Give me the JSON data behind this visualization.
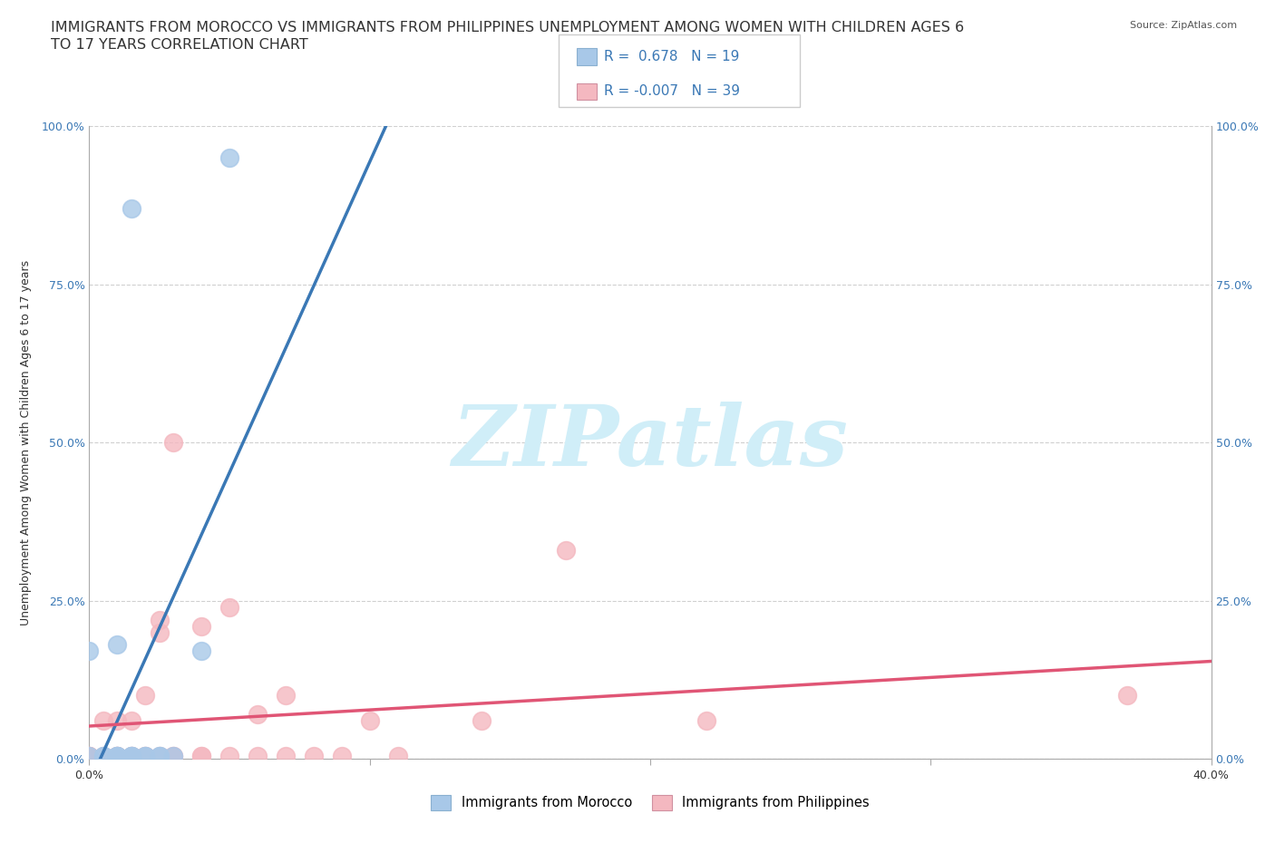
{
  "title_line1": "IMMIGRANTS FROM MOROCCO VS IMMIGRANTS FROM PHILIPPINES UNEMPLOYMENT AMONG WOMEN WITH CHILDREN AGES 6",
  "title_line2": "TO 17 YEARS CORRELATION CHART",
  "source": "Source: ZipAtlas.com",
  "ylabel": "Unemployment Among Women with Children Ages 6 to 17 years",
  "xlim": [
    0.0,
    0.4
  ],
  "ylim": [
    0.0,
    1.0
  ],
  "xticks": [
    0.0,
    0.1,
    0.2,
    0.3,
    0.4
  ],
  "xticklabels": [
    "0.0%",
    "",
    "",
    "",
    "40.0%"
  ],
  "yticks": [
    0.0,
    0.25,
    0.5,
    0.75,
    1.0
  ],
  "yticklabels": [
    "0.0%",
    "25.0%",
    "50.0%",
    "75.0%",
    "100.0%"
  ],
  "morocco_color": "#a8c8e8",
  "philippines_color": "#f4b8c0",
  "morocco_line_color": "#3a78b5",
  "philippines_line_color": "#e05575",
  "watermark_text": "ZIPatlas",
  "watermark_color": "#d0eef8",
  "background_color": "#ffffff",
  "grid_color": "#d0d0d0",
  "morocco_R": 0.678,
  "morocco_N": 19,
  "philippines_R": -0.007,
  "philippines_N": 39,
  "morocco_x": [
    0.0,
    0.0,
    0.005,
    0.005,
    0.01,
    0.01,
    0.01,
    0.01,
    0.015,
    0.015,
    0.015,
    0.015,
    0.02,
    0.02,
    0.025,
    0.025,
    0.03,
    0.04,
    0.05
  ],
  "morocco_y": [
    0.005,
    0.17,
    0.005,
    0.005,
    0.005,
    0.005,
    0.005,
    0.18,
    0.005,
    0.005,
    0.005,
    0.87,
    0.005,
    0.005,
    0.005,
    0.005,
    0.005,
    0.17,
    0.95
  ],
  "philippines_x": [
    0.0,
    0.0,
    0.0,
    0.0,
    0.005,
    0.005,
    0.01,
    0.01,
    0.01,
    0.01,
    0.015,
    0.015,
    0.015,
    0.02,
    0.02,
    0.02,
    0.025,
    0.025,
    0.025,
    0.03,
    0.03,
    0.03,
    0.04,
    0.04,
    0.04,
    0.05,
    0.05,
    0.06,
    0.06,
    0.07,
    0.07,
    0.08,
    0.09,
    0.1,
    0.11,
    0.14,
    0.17,
    0.22,
    0.37
  ],
  "philippines_y": [
    0.005,
    0.005,
    0.005,
    0.005,
    0.005,
    0.06,
    0.005,
    0.005,
    0.005,
    0.06,
    0.005,
    0.005,
    0.06,
    0.005,
    0.005,
    0.1,
    0.005,
    0.2,
    0.22,
    0.005,
    0.005,
    0.5,
    0.005,
    0.005,
    0.21,
    0.005,
    0.24,
    0.005,
    0.07,
    0.005,
    0.1,
    0.005,
    0.005,
    0.06,
    0.005,
    0.06,
    0.33,
    0.06,
    0.1
  ],
  "title_fontsize": 11.5,
  "axis_fontsize": 9,
  "ylabel_fontsize": 9
}
